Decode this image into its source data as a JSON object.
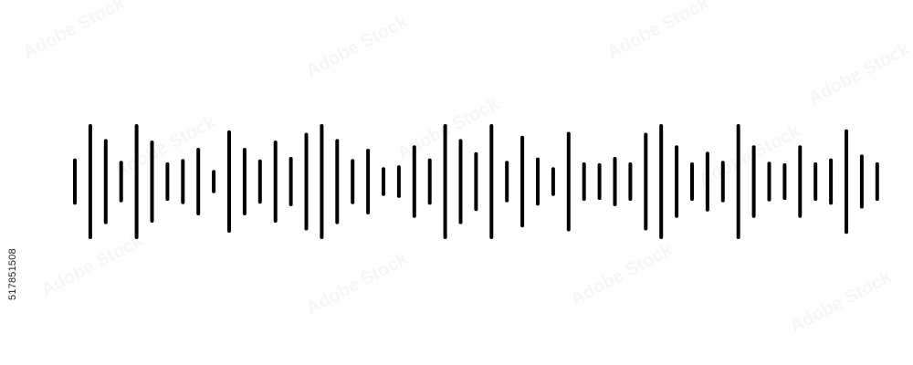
{
  "image_id_label": "517851508",
  "watermark_text": "Adobe Stock",
  "colors": {
    "background": "#ffffff",
    "bars": "#000000"
  },
  "waveform": {
    "levels": [
      0.29,
      1.0,
      0.69,
      0.24,
      1.0,
      0.66,
      0.21,
      0.28,
      0.51,
      0.05,
      0.87,
      0.51,
      0.27,
      0.66,
      0.32,
      0.82,
      1.0,
      0.69,
      0.28,
      0.49,
      0.11,
      0.15,
      0.56,
      0.29,
      1.0,
      0.69,
      0.42,
      1.0,
      0.24,
      0.76,
      0.31,
      0.11,
      0.84,
      0.21,
      0.19,
      0.32,
      0.21,
      0.82,
      1.0,
      0.56,
      0.21,
      0.43,
      0.24,
      1.0,
      0.56,
      0.22,
      0.19,
      0.56,
      0.21,
      0.29,
      0.89,
      0.37,
      0.21
    ]
  }
}
